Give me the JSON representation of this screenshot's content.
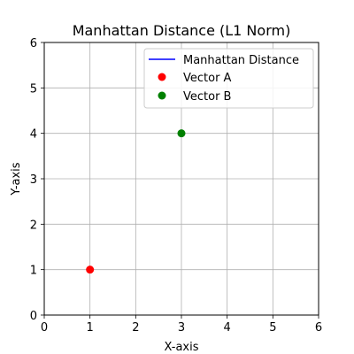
{
  "chart_data": {
    "type": "scatter",
    "title": "Manhattan Distance (L1 Norm)",
    "xlabel": "X-axis",
    "ylabel": "Y-axis",
    "xlim": [
      0,
      6
    ],
    "ylim": [
      0,
      6
    ],
    "xticks": [
      "0",
      "1",
      "2",
      "3",
      "4",
      "5",
      "6"
    ],
    "yticks": [
      "0",
      "1",
      "2",
      "3",
      "4",
      "5",
      "6"
    ],
    "grid": true,
    "legend_position": "top-right",
    "series": [
      {
        "name": "Manhattan Distance",
        "kind": "line",
        "color": "#0000ff",
        "points": []
      },
      {
        "name": "Vector A",
        "kind": "scatter",
        "color": "#ff0000",
        "points": [
          [
            1,
            1
          ]
        ]
      },
      {
        "name": "Vector B",
        "kind": "scatter",
        "color": "#008000",
        "points": [
          [
            3,
            4
          ]
        ]
      }
    ]
  }
}
